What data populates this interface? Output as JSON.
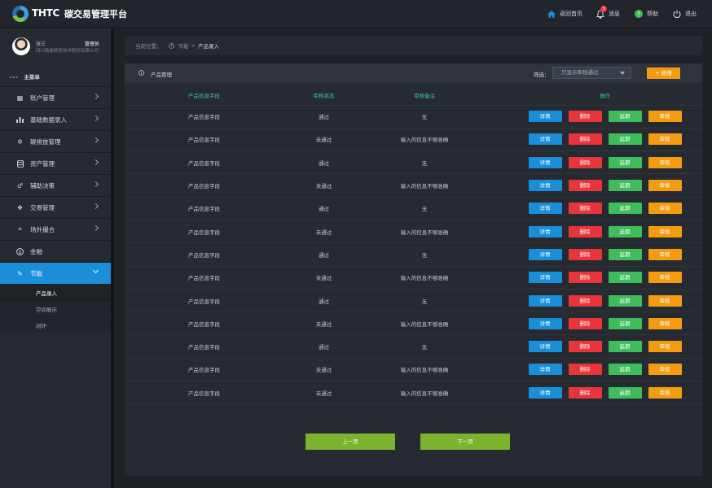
{
  "header": {
    "brand": "THTC",
    "title": "碳交易管理平台",
    "nav": [
      {
        "label": "返回首页",
        "icon": "home-icon"
      },
      {
        "label": "消息",
        "icon": "bell-icon",
        "badge": "3"
      },
      {
        "label": "帮助",
        "icon": "help-icon"
      },
      {
        "label": "退出",
        "icon": "power-icon"
      }
    ]
  },
  "user": {
    "name": "张三",
    "role": "管理员",
    "company": "四川致象联系技术股份有限公司"
  },
  "sidebar": {
    "section_title": "主菜单",
    "items": [
      {
        "label": "账户管理",
        "icon": "grid-icon"
      },
      {
        "label": "基础数据录入",
        "icon": "bar-chart-icon"
      },
      {
        "label": "碳排放管理",
        "icon": "gear-icon"
      },
      {
        "label": "资产管理",
        "icon": "database-icon"
      },
      {
        "label": "辅助决策",
        "icon": "decision-icon"
      },
      {
        "label": "交易管理",
        "icon": "handshake-icon"
      },
      {
        "label": "场外撮合",
        "icon": "match-icon"
      },
      {
        "label": "金融",
        "icon": "dollar-icon"
      },
      {
        "label": "节能",
        "icon": "leaf-icon",
        "active": true
      }
    ],
    "subitems": [
      {
        "label": "产品录入",
        "current": true
      },
      {
        "label": "空间展示"
      },
      {
        "label": "闭环"
      }
    ]
  },
  "breadcrumb": {
    "prefix": "当前位置：",
    "path": "节能",
    "separator": ">",
    "current": "产品录入"
  },
  "panel": {
    "title": "产品管理",
    "filter_label": "筛选：",
    "filter_value": "只显示审核通过",
    "new_button": "+ 新增"
  },
  "table": {
    "columns": [
      "产品信息字段",
      "审核状态",
      "审核备注",
      "操作"
    ],
    "rows": [
      {
        "field": "产品信息字段",
        "status": "通过",
        "remark": "无"
      },
      {
        "field": "产品信息字段",
        "status": "未通过",
        "remark": "输入的信息不够准确"
      },
      {
        "field": "产品信息字段",
        "status": "通过",
        "remark": "无"
      },
      {
        "field": "产品信息字段",
        "status": "未通过",
        "remark": "输入的信息不够准确"
      },
      {
        "field": "产品信息字段",
        "status": "通过",
        "remark": "无"
      },
      {
        "field": "产品信息字段",
        "status": "未通过",
        "remark": "输入的信息不够准确"
      },
      {
        "field": "产品信息字段",
        "status": "通过",
        "remark": "无"
      },
      {
        "field": "产品信息字段",
        "status": "未通过",
        "remark": "输入的信息不够准确"
      },
      {
        "field": "产品信息字段",
        "status": "通过",
        "remark": "无"
      },
      {
        "field": "产品信息字段",
        "status": "未通过",
        "remark": "输入的信息不够准确"
      },
      {
        "field": "产品信息字段",
        "status": "通过",
        "remark": "无"
      },
      {
        "field": "产品信息字段",
        "status": "未通过",
        "remark": "输入的信息不够准确"
      },
      {
        "field": "产品信息字段",
        "status": "未通过",
        "remark": "输入的信息不够准确"
      }
    ],
    "actions": [
      "详情",
      "删除",
      "延期",
      "审核"
    ]
  },
  "pager": {
    "prev": "上一页",
    "next": "下一页"
  },
  "colors": {
    "accent_blue": "#1a8ed8",
    "danger_red": "#e8353b",
    "success_green": "#3fbd5c",
    "warning_orange": "#f39c12",
    "header_teal": "#39c6a6",
    "pager_green": "#7bb32e"
  }
}
